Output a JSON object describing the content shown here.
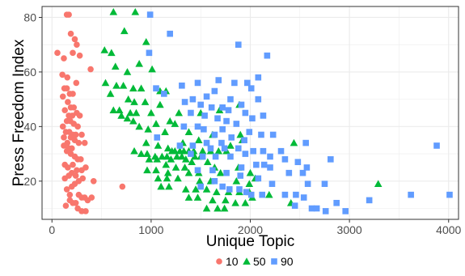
{
  "colors": {
    "s10": "#F8766D",
    "s50": "#00BA38",
    "s90": "#619CFF",
    "grid": "#ebebeb",
    "panel_border": "#333333"
  },
  "chart_data": {
    "type": "scatter",
    "title": "",
    "xlabel": "Unique Topic",
    "ylabel": "Press Freedom Index",
    "xlim": [
      -100,
      4100
    ],
    "ylim": [
      6,
      84
    ],
    "xticks": [
      0,
      1000,
      2000,
      3000,
      4000
    ],
    "yticks": [
      20,
      40,
      60,
      80
    ],
    "grid": true,
    "legend_position": "bottom",
    "series": [
      {
        "name": "10",
        "shape": "circle",
        "points": [
          [
            150,
            81
          ],
          [
            170,
            81
          ],
          [
            190,
            74
          ],
          [
            230,
            72
          ],
          [
            250,
            70
          ],
          [
            210,
            67
          ],
          [
            280,
            66
          ],
          [
            55,
            67
          ],
          [
            120,
            65
          ],
          [
            105,
            59
          ],
          [
            155,
            58
          ],
          [
            390,
            61
          ],
          [
            245,
            56
          ],
          [
            125,
            54
          ],
          [
            150,
            54
          ],
          [
            180,
            52
          ],
          [
            210,
            52
          ],
          [
            110,
            51
          ],
          [
            160,
            49
          ],
          [
            190,
            47
          ],
          [
            220,
            47
          ],
          [
            130,
            46
          ],
          [
            250,
            45
          ],
          [
            170,
            44
          ],
          [
            205,
            44
          ],
          [
            280,
            44
          ],
          [
            150,
            42
          ],
          [
            185,
            42
          ],
          [
            220,
            41
          ],
          [
            110,
            40
          ],
          [
            260,
            40
          ],
          [
            140,
            38
          ],
          [
            175,
            38
          ],
          [
            210,
            37
          ],
          [
            240,
            37
          ],
          [
            300,
            37
          ],
          [
            120,
            36
          ],
          [
            190,
            36
          ],
          [
            230,
            35
          ],
          [
            155,
            34
          ],
          [
            270,
            34
          ],
          [
            330,
            34
          ],
          [
            120,
            33
          ],
          [
            170,
            32
          ],
          [
            200,
            32
          ],
          [
            150,
            31
          ],
          [
            190,
            30
          ],
          [
            230,
            29
          ],
          [
            260,
            28
          ],
          [
            290,
            28
          ],
          [
            210,
            26
          ],
          [
            130,
            26
          ],
          [
            160,
            25
          ],
          [
            340,
            25
          ],
          [
            300,
            24
          ],
          [
            250,
            24
          ],
          [
            200,
            23
          ],
          [
            170,
            22
          ],
          [
            130,
            21
          ],
          [
            310,
            21
          ],
          [
            270,
            20
          ],
          [
            230,
            19
          ],
          [
            200,
            18
          ],
          [
            150,
            17
          ],
          [
            270,
            15
          ],
          [
            300,
            14
          ],
          [
            330,
            14
          ],
          [
            360,
            13
          ],
          [
            180,
            13
          ],
          [
            210,
            12
          ],
          [
            240,
            12
          ],
          [
            140,
            11
          ],
          [
            260,
            10
          ],
          [
            300,
            9
          ],
          [
            340,
            9
          ],
          [
            710,
            18
          ],
          [
            400,
            14
          ],
          [
            420,
            20
          ],
          [
            180,
            15
          ],
          [
            240,
            22
          ]
        ]
      },
      {
        "name": "50",
        "shape": "triangle",
        "points": [
          [
            620,
            82
          ],
          [
            840,
            82
          ],
          [
            730,
            75
          ],
          [
            950,
            71
          ],
          [
            530,
            68
          ],
          [
            600,
            67
          ],
          [
            880,
            63
          ],
          [
            640,
            62
          ],
          [
            760,
            60
          ],
          [
            1010,
            61
          ],
          [
            540,
            56
          ],
          [
            650,
            55
          ],
          [
            720,
            55
          ],
          [
            820,
            54
          ],
          [
            900,
            54
          ],
          [
            1090,
            53
          ],
          [
            1150,
            53
          ],
          [
            590,
            52
          ],
          [
            770,
            50
          ],
          [
            830,
            49
          ],
          [
            940,
            49
          ],
          [
            1090,
            48
          ],
          [
            620,
            46
          ],
          [
            680,
            46
          ],
          [
            790,
            45
          ],
          [
            850,
            45
          ],
          [
            1000,
            45
          ],
          [
            1280,
            45
          ],
          [
            1500,
            45
          ],
          [
            1890,
            48
          ],
          [
            1690,
            46
          ],
          [
            700,
            44
          ],
          [
            760,
            43
          ],
          [
            820,
            42
          ],
          [
            1190,
            42
          ],
          [
            1050,
            41
          ],
          [
            1240,
            41
          ],
          [
            880,
            40
          ],
          [
            970,
            39
          ],
          [
            1140,
            38
          ],
          [
            1380,
            38
          ],
          [
            1620,
            37
          ],
          [
            1900,
            37
          ],
          [
            1920,
            35
          ],
          [
            1320,
            34
          ],
          [
            1480,
            35
          ],
          [
            2440,
            34
          ],
          [
            1800,
            33
          ],
          [
            950,
            34
          ],
          [
            1070,
            33
          ],
          [
            1170,
            32
          ],
          [
            1210,
            31
          ],
          [
            1240,
            31
          ],
          [
            1290,
            31
          ],
          [
            1330,
            31
          ],
          [
            1380,
            31
          ],
          [
            1430,
            31
          ],
          [
            1520,
            31
          ],
          [
            1600,
            31
          ],
          [
            1680,
            31
          ],
          [
            1760,
            31
          ],
          [
            830,
            31
          ],
          [
            900,
            30
          ],
          [
            960,
            30
          ],
          [
            1040,
            29
          ],
          [
            1110,
            29
          ],
          [
            1160,
            29
          ],
          [
            1260,
            29
          ],
          [
            1310,
            29
          ],
          [
            1440,
            29
          ],
          [
            1500,
            29
          ],
          [
            980,
            28
          ],
          [
            1060,
            28
          ],
          [
            1200,
            28
          ],
          [
            1350,
            28
          ],
          [
            1410,
            27
          ],
          [
            1570,
            27
          ],
          [
            1150,
            26
          ],
          [
            1250,
            25
          ],
          [
            1340,
            25
          ],
          [
            1640,
            25
          ],
          [
            1880,
            25
          ],
          [
            960,
            24
          ],
          [
            1050,
            24
          ],
          [
            1170,
            23
          ],
          [
            1380,
            23
          ],
          [
            1480,
            23
          ],
          [
            1700,
            23
          ],
          [
            2000,
            23
          ],
          [
            1070,
            21
          ],
          [
            1160,
            21
          ],
          [
            1270,
            21
          ],
          [
            1490,
            20
          ],
          [
            1600,
            20
          ],
          [
            1860,
            20
          ],
          [
            1990,
            19
          ],
          [
            2050,
            21
          ],
          [
            1100,
            18
          ],
          [
            1180,
            18
          ],
          [
            1350,
            17
          ],
          [
            1450,
            17
          ],
          [
            1560,
            17
          ],
          [
            1660,
            16
          ],
          [
            1780,
            16
          ],
          [
            1890,
            16
          ],
          [
            1990,
            16
          ],
          [
            2190,
            15
          ],
          [
            1380,
            14
          ],
          [
            1470,
            14
          ],
          [
            1620,
            13
          ],
          [
            1750,
            13
          ],
          [
            1850,
            12
          ],
          [
            1950,
            12
          ],
          [
            2410,
            12
          ],
          [
            3290,
            19
          ],
          [
            1560,
            10
          ],
          [
            1670,
            10
          ],
          [
            1740,
            10
          ],
          [
            2020,
            14
          ]
        ]
      },
      {
        "name": "90",
        "shape": "square",
        "points": [
          [
            990,
            81
          ],
          [
            1190,
            74
          ],
          [
            1880,
            70
          ],
          [
            980,
            67
          ],
          [
            2170,
            66
          ],
          [
            2080,
            58
          ],
          [
            1680,
            57
          ],
          [
            1840,
            56
          ],
          [
            1310,
            55
          ],
          [
            1470,
            56
          ],
          [
            1640,
            53
          ],
          [
            1970,
            56
          ],
          [
            2010,
            54
          ],
          [
            1050,
            54
          ],
          [
            1130,
            52
          ],
          [
            1560,
            51
          ],
          [
            1800,
            50
          ],
          [
            2080,
            50
          ],
          [
            1340,
            49
          ],
          [
            1420,
            50
          ],
          [
            1500,
            48
          ],
          [
            1910,
            48
          ],
          [
            1610,
            47
          ],
          [
            1720,
            47
          ],
          [
            1780,
            46
          ],
          [
            1400,
            45
          ],
          [
            1950,
            45
          ],
          [
            2020,
            43
          ],
          [
            2130,
            44
          ],
          [
            1540,
            44
          ],
          [
            1670,
            43
          ],
          [
            1760,
            42
          ],
          [
            1860,
            41
          ],
          [
            1330,
            40
          ],
          [
            1470,
            40
          ],
          [
            1530,
            39
          ],
          [
            1720,
            39
          ],
          [
            1990,
            38
          ],
          [
            2110,
            37
          ],
          [
            2230,
            37
          ],
          [
            1640,
            37
          ],
          [
            1810,
            36
          ],
          [
            1940,
            35
          ],
          [
            1560,
            34
          ],
          [
            1710,
            34
          ],
          [
            2560,
            34
          ],
          [
            3880,
            33
          ],
          [
            1060,
            36
          ],
          [
            1290,
            33
          ],
          [
            1420,
            33
          ],
          [
            1600,
            32
          ],
          [
            1740,
            32
          ],
          [
            1880,
            32
          ],
          [
            2030,
            31
          ],
          [
            2130,
            31
          ],
          [
            2310,
            31
          ],
          [
            1950,
            30
          ],
          [
            1400,
            30
          ],
          [
            1520,
            29
          ],
          [
            1650,
            29
          ],
          [
            1800,
            29
          ],
          [
            2200,
            29
          ],
          [
            2350,
            28
          ],
          [
            2810,
            28
          ],
          [
            2480,
            27
          ],
          [
            2060,
            26
          ],
          [
            2140,
            26
          ],
          [
            1910,
            25
          ],
          [
            2200,
            25
          ],
          [
            2570,
            25
          ],
          [
            1470,
            24
          ],
          [
            1620,
            24
          ],
          [
            1760,
            23
          ],
          [
            2390,
            23
          ],
          [
            2530,
            23
          ],
          [
            1900,
            22
          ],
          [
            2080,
            21
          ],
          [
            1640,
            20
          ],
          [
            2220,
            19
          ],
          [
            1500,
            18
          ],
          [
            1720,
            18
          ],
          [
            2580,
            19
          ],
          [
            2750,
            19
          ],
          [
            1790,
            17
          ],
          [
            1890,
            17
          ],
          [
            1960,
            16
          ],
          [
            2120,
            15
          ],
          [
            2350,
            15
          ],
          [
            2460,
            15
          ],
          [
            2010,
            15
          ],
          [
            3620,
            15
          ],
          [
            4010,
            15
          ],
          [
            2540,
            14
          ],
          [
            2870,
            12
          ],
          [
            3200,
            13
          ],
          [
            2450,
            11
          ],
          [
            2620,
            10
          ],
          [
            2670,
            10
          ],
          [
            2760,
            9
          ],
          [
            2960,
            9
          ]
        ]
      }
    ]
  }
}
